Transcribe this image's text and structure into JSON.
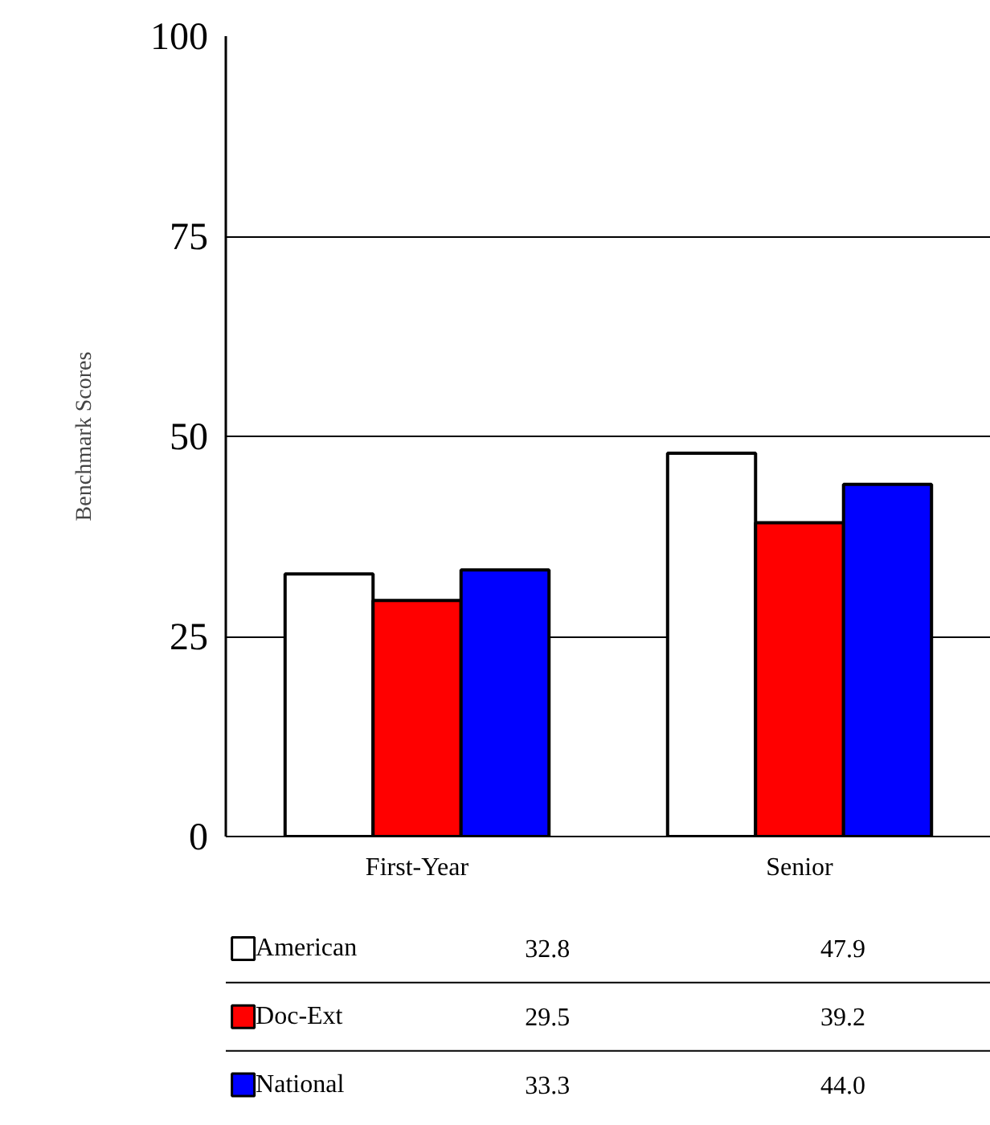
{
  "chart_data": {
    "type": "bar",
    "ylabel": "Benchmark Scores",
    "categories": [
      "First-Year",
      "Senior"
    ],
    "series": [
      {
        "name": "American",
        "color": "#ffffff",
        "values": [
          32.8,
          47.9
        ],
        "value_labels": [
          "32.8",
          "47.9"
        ]
      },
      {
        "name": "Doc-Ext",
        "color": "#ff0000",
        "values": [
          29.5,
          39.2
        ],
        "value_labels": [
          "29.5",
          "39.2"
        ]
      },
      {
        "name": "National",
        "color": "#0000ff",
        "values": [
          33.3,
          44.0
        ],
        "value_labels": [
          "33.3",
          "44.0"
        ]
      }
    ],
    "ylim": [
      0,
      100
    ],
    "yticks": [
      0,
      25,
      50,
      75,
      100
    ],
    "grid": "y",
    "legend": "bottom"
  }
}
